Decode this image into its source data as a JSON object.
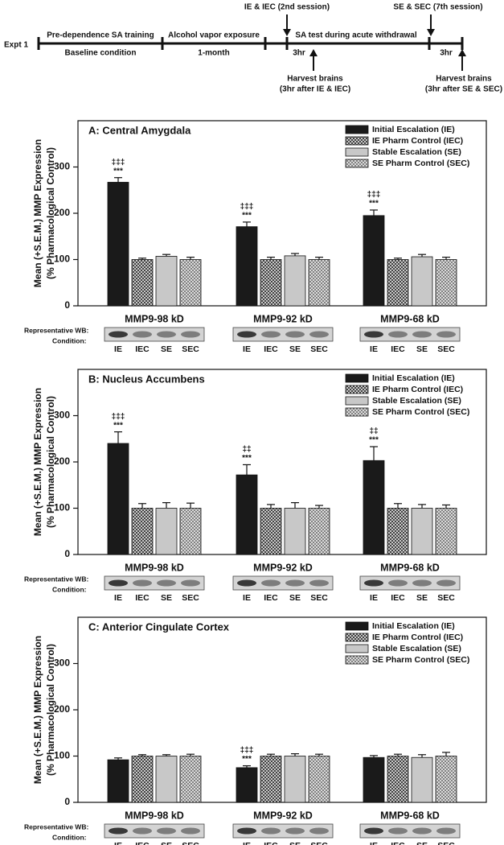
{
  "timeline": {
    "experiment": "Expt 1",
    "stage1": "Pre-dependence SA training",
    "stage1_sub": "Baseline condition",
    "stage2": "Alcohol vapor exposure",
    "stage2_sub": "1-month",
    "stage3": "SA test during acute withdrawal",
    "interval1": "3hr",
    "interval2": "3hr",
    "event1": "IE & IEC (2nd session)",
    "event2": "SE & SEC (7th session)",
    "harvest1": [
      "Harvest brains",
      "(3hr after IE & IEC)"
    ],
    "harvest2": [
      "Harvest brains",
      "(3hr after SE & SEC)"
    ]
  },
  "chart_data": [
    {
      "type": "bar",
      "title": "A: Central Amygdala",
      "ylabel": [
        "Mean (+S.E.M.) MMP Expression",
        "(% Pharmacological Control)"
      ],
      "categories": [
        "MMP9-98 kD",
        "MMP9-92 kD",
        "MMP9-68 kD"
      ],
      "ylim": [
        0,
        400
      ],
      "yticks": [
        0,
        100,
        200,
        300
      ],
      "legend": "upper right",
      "wb_label": "Representative WB:",
      "condition_label": "Condition:",
      "conditions": [
        "IE",
        "IEC",
        "SE",
        "SEC"
      ],
      "series": [
        {
          "name": "Initial Escalation (IE)",
          "color": "#1a1a1a",
          "hatch": false,
          "values": [
            267,
            171,
            195
          ],
          "errors": [
            10,
            10,
            12
          ],
          "significance": [
            [
              "‡‡‡",
              "***"
            ],
            [
              "‡‡‡",
              "***"
            ],
            [
              "‡‡‡",
              "***"
            ]
          ]
        },
        {
          "name": "IE Pharm Control (IEC)",
          "color": "#333333",
          "hatch": true,
          "values": [
            100,
            100,
            100
          ],
          "errors": [
            3,
            5,
            3
          ]
        },
        {
          "name": "Stable Escalation (SE)",
          "color": "#c8c8c8",
          "hatch": false,
          "values": [
            107,
            108,
            106
          ],
          "errors": [
            4,
            5,
            5
          ]
        },
        {
          "name": "SE Pharm Control (SEC)",
          "color": "#777777",
          "hatch": true,
          "values": [
            100,
            100,
            100
          ],
          "errors": [
            5,
            5,
            5
          ]
        }
      ]
    },
    {
      "type": "bar",
      "title": "B: Nucleus Accumbens",
      "ylabel": [
        "Mean (+S.E.M.) MMP Expression",
        "(% Pharmacological Control)"
      ],
      "categories": [
        "MMP9-98 kD",
        "MMP9-92 kD",
        "MMP9-68 kD"
      ],
      "ylim": [
        0,
        400
      ],
      "yticks": [
        0,
        100,
        200,
        300
      ],
      "legend": "upper right",
      "wb_label": "Representative WB:",
      "condition_label": "Condition:",
      "conditions": [
        "IE",
        "IEC",
        "SE",
        "SEC"
      ],
      "series": [
        {
          "name": "Initial Escalation (IE)",
          "color": "#1a1a1a",
          "hatch": false,
          "values": [
            240,
            172,
            203
          ],
          "errors": [
            25,
            22,
            30
          ],
          "significance": [
            [
              "‡‡‡",
              "***"
            ],
            [
              "‡‡",
              "***"
            ],
            [
              "‡‡",
              "***"
            ]
          ]
        },
        {
          "name": "IE Pharm Control (IEC)",
          "color": "#333333",
          "hatch": true,
          "values": [
            100,
            100,
            100
          ],
          "errors": [
            10,
            8,
            10
          ]
        },
        {
          "name": "Stable Escalation (SE)",
          "color": "#c8c8c8",
          "hatch": false,
          "values": [
            100,
            100,
            100
          ],
          "errors": [
            12,
            12,
            8
          ]
        },
        {
          "name": "SE Pharm Control (SEC)",
          "color": "#777777",
          "hatch": true,
          "values": [
            100,
            100,
            100
          ],
          "errors": [
            11,
            6,
            7
          ]
        }
      ]
    },
    {
      "type": "bar",
      "title": "C: Anterior Cingulate Cortex",
      "ylabel": [
        "Mean (+S.E.M.) MMP Expression",
        "(% Pharmacological Control)"
      ],
      "categories": [
        "MMP9-98 kD",
        "MMP9-92 kD",
        "MMP9-68 kD"
      ],
      "ylim": [
        0,
        400
      ],
      "yticks": [
        0,
        100,
        200,
        300
      ],
      "legend": "upper right",
      "wb_label": "Representative WB:",
      "condition_label": "Condition:",
      "conditions": [
        "IE",
        "IEC",
        "SE",
        "SEC"
      ],
      "series": [
        {
          "name": "Initial Escalation (IE)",
          "color": "#1a1a1a",
          "hatch": false,
          "values": [
            92,
            75,
            97
          ],
          "errors": [
            4,
            4,
            4
          ],
          "significance": [
            null,
            [
              "‡‡‡",
              "***"
            ],
            null
          ]
        },
        {
          "name": "IE Pharm Control (IEC)",
          "color": "#333333",
          "hatch": true,
          "values": [
            100,
            100,
            100
          ],
          "errors": [
            3,
            4,
            4
          ]
        },
        {
          "name": "Stable Escalation (SE)",
          "color": "#c8c8c8",
          "hatch": false,
          "values": [
            100,
            100,
            97
          ],
          "errors": [
            3,
            5,
            6
          ]
        },
        {
          "name": "SE Pharm Control (SEC)",
          "color": "#777777",
          "hatch": true,
          "values": [
            100,
            100,
            100
          ],
          "errors": [
            4,
            4,
            8
          ]
        }
      ]
    }
  ]
}
